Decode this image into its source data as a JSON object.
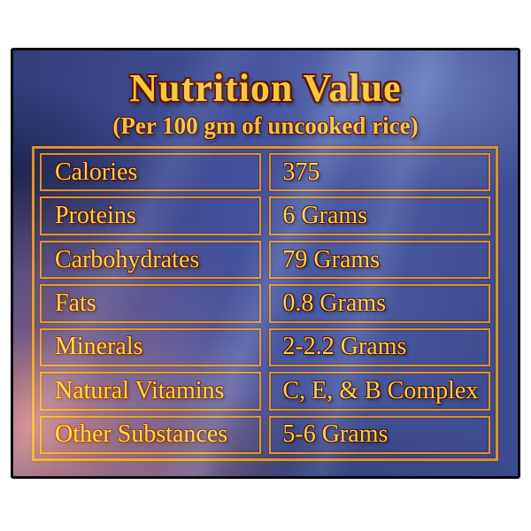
{
  "photo": {
    "title": "Nutrition Value",
    "subtitle": "(Per 100 gm of uncooked rice)",
    "rows": [
      {
        "label": "Calories",
        "value": "375"
      },
      {
        "label": "Proteins",
        "value": "6 Grams"
      },
      {
        "label": "Carbohydrates",
        "value": "79 Grams"
      },
      {
        "label": "Fats",
        "value": "0.8 Grams"
      },
      {
        "label": "Minerals",
        "value": "2-2.2 Grams"
      },
      {
        "label": "Natural Vitamins",
        "value": "C, E, & B Complex"
      },
      {
        "label": "Other Substances",
        "value": "5-6 Grams"
      }
    ],
    "colors": {
      "background_blue": "#41509a",
      "frame_black": "#07080f",
      "border_gold": "#d8932e",
      "text_gold": "#f6cd55",
      "title_gold": "#f8c838",
      "glow_orange": "#ff8012"
    }
  }
}
